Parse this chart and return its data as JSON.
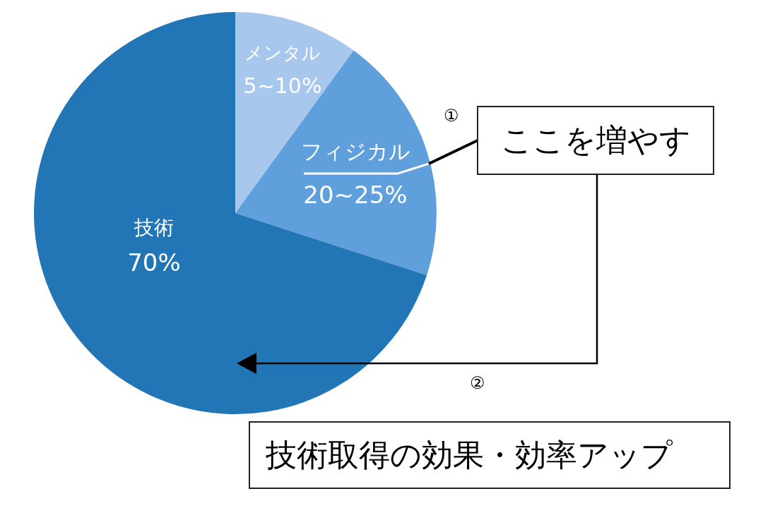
{
  "chart_data": {
    "type": "pie",
    "categories": [
      "メンタル",
      "フィジカル",
      "技術"
    ],
    "values": [
      10,
      20,
      70
    ],
    "colors": [
      "#a7c8ec",
      "#5fa0dc",
      "#2276b5"
    ],
    "value_labels": [
      "5~10%",
      "20~25%",
      "70%"
    ],
    "annotations": [
      "①",
      "ここを増やす",
      "②",
      "技術取得の効果・効率アップ"
    ]
  }
}
